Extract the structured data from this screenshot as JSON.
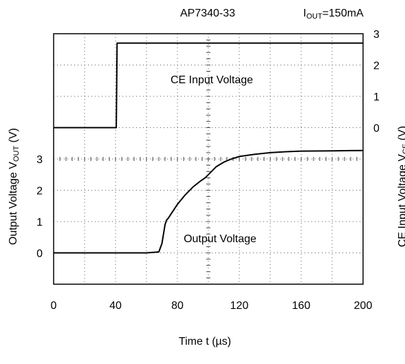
{
  "chart_data": {
    "type": "line",
    "title": "AP7340-33",
    "condition": {
      "prefix": "I",
      "subscript": "OUT",
      "suffix": "=150mA"
    },
    "xlabel": "Time t (µs)",
    "ylabel_left": {
      "main": "Output Voltage V",
      "subscript": "OUT",
      "suffix": " (V)"
    },
    "ylabel_right": {
      "main": "CE Input Voltage V",
      "subscript": "CE",
      "suffix": " (V)"
    },
    "xlim": [
      0,
      200
    ],
    "x_ticks": [
      "0",
      "40",
      "80",
      "120",
      "160",
      "200"
    ],
    "x_tick_values": [
      0,
      40,
      80,
      120,
      160,
      200
    ],
    "left_y_ticks": [
      "0",
      "1",
      "2",
      "3"
    ],
    "right_y_ticks": [
      "0",
      "1",
      "2",
      "3"
    ],
    "grid": "dotted",
    "series": [
      {
        "name": "CE Input Voltage",
        "axis": "right",
        "x": [
          0,
          40.5,
          41,
          60,
          100,
          140,
          180,
          200
        ],
        "y": [
          0,
          0,
          2.7,
          2.7,
          2.7,
          2.7,
          2.7,
          2.7
        ]
      },
      {
        "name": "Output Voltage",
        "axis": "left",
        "x": [
          0,
          40,
          60,
          68,
          70,
          72,
          73,
          74,
          76,
          80,
          85,
          90,
          95,
          98,
          100,
          103,
          105,
          110,
          115,
          120,
          130,
          140,
          150,
          160,
          180,
          200
        ],
        "y": [
          0,
          0,
          0,
          0.03,
          0.3,
          0.9,
          1.05,
          1.1,
          1.25,
          1.55,
          1.85,
          2.1,
          2.3,
          2.4,
          2.5,
          2.65,
          2.75,
          2.9,
          3.0,
          3.08,
          3.15,
          3.2,
          3.23,
          3.25,
          3.26,
          3.27
        ]
      }
    ]
  }
}
